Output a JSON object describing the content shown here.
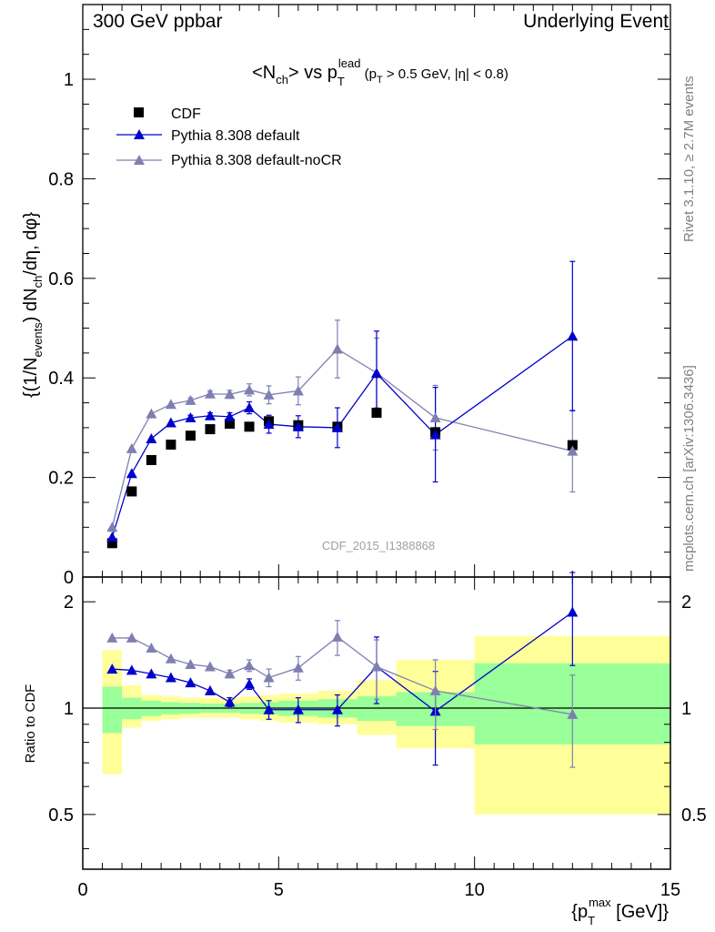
{
  "header": {
    "left": "300 GeV ppbar",
    "right": "Underlying Event"
  },
  "side_labels": {
    "rivet": "Rivet 3.1.10, ≥ 2.7M events",
    "mcplots": "mcplots.cern.ch [arXiv:1306.3436]"
  },
  "watermark": "CDF_2015_I1388868",
  "colors": {
    "cdf": "#000000",
    "default": "#0000cc",
    "nocr": "#7f7fb2",
    "band_inner": "#99ff99",
    "band_outer": "#ffff99"
  },
  "chart_data": [
    {
      "type": "scatter",
      "title": "<N_ch> vs p_T^lead (p_T > 0.5 GeV, |η| < 0.8)",
      "ylabel": "{(1/N_events) dN_ch/dη, dφ}",
      "xlim": [
        0,
        15
      ],
      "ylim": [
        0,
        1.15
      ],
      "yticks": [
        0,
        0.2,
        0.4,
        0.6,
        0.8,
        1
      ],
      "legend_position": "top-left",
      "x": [
        0.75,
        1.25,
        1.75,
        2.25,
        2.75,
        3.25,
        3.75,
        4.25,
        4.75,
        5.5,
        6.5,
        7.5,
        9.0,
        12.5
      ],
      "series": [
        {
          "name": "CDF",
          "marker": "square",
          "values": [
            0.068,
            0.172,
            0.235,
            0.266,
            0.284,
            0.297,
            0.308,
            0.302,
            0.313,
            0.305,
            0.302,
            0.33,
            0.291,
            0.265
          ]
        },
        {
          "name": "Pythia 8.308 default",
          "marker": "triangle",
          "values": [
            0.08,
            0.208,
            0.278,
            0.31,
            0.32,
            0.324,
            0.322,
            0.34,
            0.307,
            0.302,
            0.3,
            0.409,
            0.286,
            0.484
          ],
          "errors": [
            0.003,
            0.003,
            0.003,
            0.004,
            0.005,
            0.006,
            0.008,
            0.012,
            0.018,
            0.022,
            0.04,
            0.085,
            0.095,
            0.15
          ]
        },
        {
          "name": "Pythia 8.308 default-noCR",
          "marker": "triangle",
          "values": [
            0.1,
            0.258,
            0.328,
            0.347,
            0.355,
            0.368,
            0.367,
            0.376,
            0.366,
            0.374,
            0.458,
            0.41,
            0.32,
            0.253
          ],
          "errors": [
            0.003,
            0.003,
            0.003,
            0.004,
            0.005,
            0.006,
            0.008,
            0.012,
            0.018,
            0.028,
            0.058,
            0.07,
            0.065,
            0.082
          ]
        }
      ]
    },
    {
      "type": "scatter",
      "ylabel": "Ratio to CDF",
      "xlabel": "{p_T^max [GeV]}",
      "xlim": [
        0,
        15
      ],
      "ylim": [
        0.35,
        2.35
      ],
      "xticks": [
        0,
        5,
        10,
        15
      ],
      "yticks": [
        0.5,
        1,
        2
      ],
      "bin_edges": [
        0.5,
        1.0,
        1.5,
        2.0,
        2.5,
        3.0,
        3.5,
        4.0,
        4.5,
        5.0,
        6.0,
        7.0,
        8.0,
        10.0,
        15.0
      ],
      "band_inner": [
        [
          0.85,
          1.15
        ],
        [
          0.93,
          1.07
        ],
        [
          0.95,
          1.05
        ],
        [
          0.96,
          1.04
        ],
        [
          0.965,
          1.035
        ],
        [
          0.97,
          1.03
        ],
        [
          0.97,
          1.03
        ],
        [
          0.965,
          1.035
        ],
        [
          0.96,
          1.04
        ],
        [
          0.95,
          1.05
        ],
        [
          0.94,
          1.06
        ],
        [
          0.92,
          1.08
        ],
        [
          0.89,
          1.11
        ],
        [
          0.79,
          1.34
        ]
      ],
      "band_outer": [
        [
          0.65,
          1.46
        ],
        [
          0.88,
          1.16
        ],
        [
          0.92,
          1.09
        ],
        [
          0.93,
          1.08
        ],
        [
          0.94,
          1.07
        ],
        [
          0.94,
          1.07
        ],
        [
          0.94,
          1.07
        ],
        [
          0.93,
          1.08
        ],
        [
          0.92,
          1.09
        ],
        [
          0.91,
          1.1
        ],
        [
          0.9,
          1.12
        ],
        [
          0.84,
          1.2
        ],
        [
          0.77,
          1.37
        ],
        [
          0.5,
          1.6
        ]
      ],
      "series": [
        {
          "name": "Pythia 8.308 default",
          "marker": "triangle",
          "values": [
            1.29,
            1.28,
            1.25,
            1.22,
            1.18,
            1.12,
            1.04,
            1.17,
            0.99,
            0.99,
            0.99,
            1.31,
            0.98,
            1.87
          ],
          "errors": [
            0.02,
            0.02,
            0.02,
            0.02,
            0.02,
            0.02,
            0.03,
            0.04,
            0.06,
            0.08,
            0.1,
            0.28,
            0.29,
            0.55
          ]
        },
        {
          "name": "Pythia 8.308 default-noCR",
          "marker": "triangle",
          "values": [
            1.58,
            1.58,
            1.48,
            1.38,
            1.33,
            1.31,
            1.25,
            1.32,
            1.22,
            1.3,
            1.59,
            1.31,
            1.12,
            0.96
          ],
          "errors": [
            0.02,
            0.02,
            0.02,
            0.02,
            0.02,
            0.02,
            0.03,
            0.05,
            0.07,
            0.1,
            0.18,
            0.25,
            0.25,
            0.28
          ]
        }
      ]
    }
  ]
}
